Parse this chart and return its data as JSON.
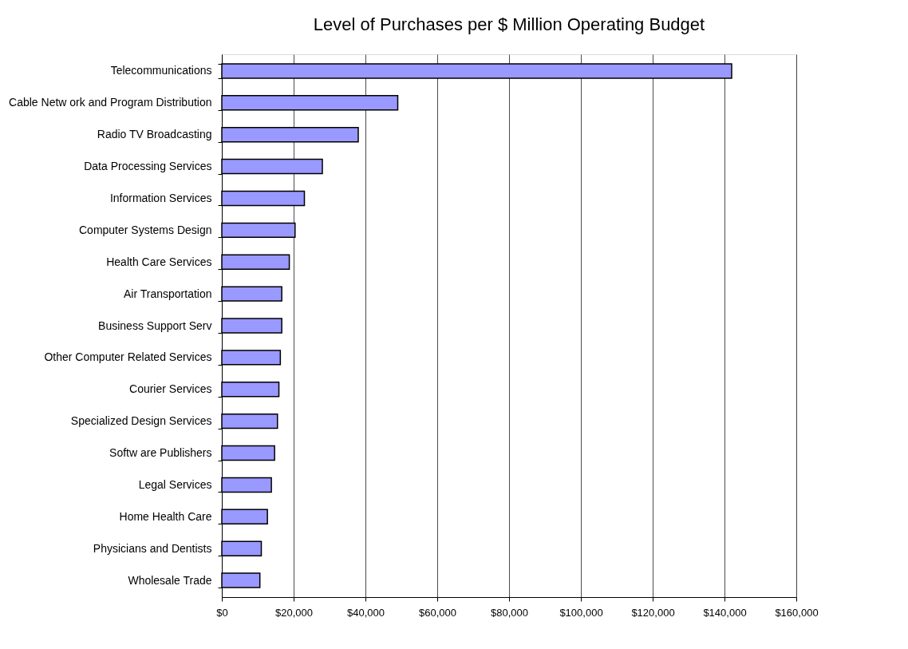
{
  "chart_data": {
    "type": "bar",
    "orientation": "horizontal",
    "title": "Level of Purchases per $ Million Operating Budget",
    "categories": [
      "Telecommunications",
      "Cable Netw ork and Program Distribution",
      "Radio TV Broadcasting",
      "Data Processing Services",
      "Information Services",
      "Computer Systems Design ",
      "Health Care Services",
      "Air Transportation",
      "Business Support Serv",
      "Other Computer Related Services",
      "Courier Services",
      "Specialized Design Services",
      "Softw are Publishers",
      "Legal Services",
      "Home Health Care ",
      "Physicians and Dentists",
      "Wholesale Trade"
    ],
    "values": [
      142000,
      49000,
      38000,
      28000,
      23000,
      20400,
      18800,
      16700,
      16700,
      16300,
      15900,
      15500,
      14700,
      13800,
      12700,
      11000,
      10600
    ],
    "color": "#9999ff",
    "xlim": [
      0,
      160000
    ],
    "xticks": [
      {
        "value": 0,
        "label": "$0"
      },
      {
        "value": 20000,
        "label": "$20,000"
      },
      {
        "value": 40000,
        "label": "$40,000"
      },
      {
        "value": 60000,
        "label": "$60,000"
      },
      {
        "value": 80000,
        "label": "$80,000"
      },
      {
        "value": 100000,
        "label": "$100,000"
      },
      {
        "value": 120000,
        "label": "$120,000"
      },
      {
        "value": 140000,
        "label": "$140,000"
      },
      {
        "value": 160000,
        "label": "$160,000"
      }
    ],
    "grid": "x"
  }
}
